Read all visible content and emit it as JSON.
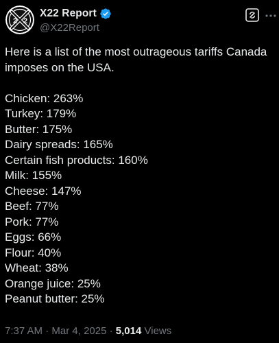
{
  "author": {
    "display_name": "X22 Report",
    "handle": "@X22Report",
    "avatar_text": "X22",
    "verified_color": "#1d9bf0"
  },
  "post": {
    "intro": "Here is a list of the most outrageous tariffs Canada imposes on the USA.",
    "items": [
      "Chicken: 263%",
      "Turkey: 179%",
      "Butter: 175%",
      "Dairy spreads: 165%",
      "Certain fish products: 160%",
      "Milk: 155%",
      "Cheese: 147%",
      "Beef: 77%",
      "Pork: 77%",
      "Eggs: 66%",
      "Flour: 40%",
      "Wheat: 38%",
      "Orange juice: 25%",
      "Peanut butter: 25%"
    ]
  },
  "meta": {
    "time": "7:37 AM",
    "separator": "·",
    "date": "Mar 4, 2025",
    "views_count": "5,014",
    "views_label": "Views"
  },
  "icons": {
    "grok": "grok-icon",
    "more": "more-icon",
    "verified": "verified-badge-icon"
  }
}
